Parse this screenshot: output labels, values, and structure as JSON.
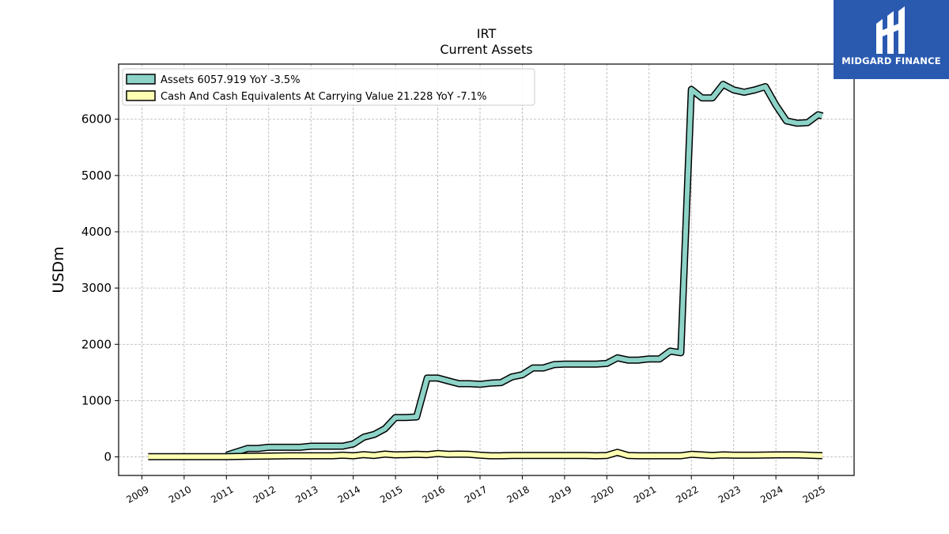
{
  "brand": {
    "name": "MIDGARD FINANCE",
    "color": "#2a5ab0"
  },
  "chart_data": {
    "type": "line",
    "title": "IRT",
    "subtitle": "Current  Assets",
    "ylabel": "USDm",
    "xlabel": "",
    "ylim": [
      -330,
      6980
    ],
    "xlim": [
      2008.45,
      2025.85
    ],
    "yticks": [
      0,
      1000,
      2000,
      3000,
      4000,
      5000,
      6000
    ],
    "xticks": [
      "2009",
      "2010",
      "2011",
      "2012",
      "2013",
      "2014",
      "2015",
      "2016",
      "2017",
      "2018",
      "2019",
      "2020",
      "2021",
      "2022",
      "2023",
      "2024",
      "2025"
    ],
    "grid": true,
    "legend_position": "top-left",
    "series": [
      {
        "name": "Assets",
        "legend_label": "Assets  6057.919 YoY -3.5%",
        "color": "#8dd3c7",
        "x": [
          2011.0,
          2011.5,
          2011.75,
          2012.0,
          2012.5,
          2012.75,
          2013.0,
          2013.5,
          2013.75,
          2014.0,
          2014.25,
          2014.5,
          2014.75,
          2015.0,
          2015.25,
          2015.5,
          2015.75,
          2016.0,
          2016.25,
          2016.5,
          2016.75,
          2017.0,
          2017.25,
          2017.5,
          2017.75,
          2018.0,
          2018.25,
          2018.5,
          2018.75,
          2019.0,
          2019.25,
          2019.5,
          2019.75,
          2020.0,
          2020.25,
          2020.5,
          2020.75,
          2021.0,
          2021.25,
          2021.5,
          2021.75,
          2022.0,
          2022.25,
          2022.5,
          2022.75,
          2023.0,
          2023.25,
          2023.5,
          2023.75,
          2024.0,
          2024.25,
          2024.5,
          2024.75,
          2025.0,
          2025.1
        ],
        "values": [
          30,
          150,
          150,
          170,
          170,
          170,
          190,
          190,
          190,
          230,
          350,
          400,
          500,
          700,
          700,
          710,
          1400,
          1400,
          1350,
          1300,
          1300,
          1290,
          1310,
          1320,
          1420,
          1460,
          1580,
          1580,
          1640,
          1650,
          1650,
          1650,
          1650,
          1660,
          1760,
          1720,
          1720,
          1740,
          1740,
          1880,
          1850,
          6530,
          6380,
          6380,
          6620,
          6520,
          6480,
          6520,
          6580,
          6250,
          5970,
          5930,
          5940,
          6080,
          6058
        ]
      },
      {
        "name": "Cash And Cash Equivalents At Carrying Value",
        "legend_label": "Cash And Cash Equivalents At Carrying Value  21.228 YoY -7.1%",
        "color": "#ffffb3",
        "x": [
          2009.15,
          2009.5,
          2010.0,
          2010.5,
          2011.0,
          2011.5,
          2012.0,
          2012.5,
          2013.0,
          2013.5,
          2013.75,
          2014.0,
          2014.25,
          2014.5,
          2014.75,
          2015.0,
          2015.25,
          2015.5,
          2015.75,
          2016.0,
          2016.25,
          2016.5,
          2016.75,
          2017.0,
          2017.25,
          2017.5,
          2017.75,
          2018.0,
          2018.5,
          2019.0,
          2019.5,
          2019.75,
          2020.0,
          2020.25,
          2020.5,
          2020.75,
          2021.0,
          2021.5,
          2021.75,
          2022.0,
          2022.25,
          2022.5,
          2022.75,
          2023.0,
          2023.5,
          2024.0,
          2024.5,
          2024.75,
          2025.1
        ],
        "values": [
          5,
          5,
          5,
          5,
          5,
          10,
          15,
          20,
          20,
          20,
          30,
          20,
          40,
          25,
          50,
          35,
          40,
          45,
          40,
          60,
          45,
          50,
          45,
          30,
          20,
          20,
          25,
          25,
          25,
          25,
          25,
          20,
          25,
          80,
          25,
          20,
          20,
          20,
          20,
          45,
          35,
          25,
          35,
          30,
          30,
          35,
          35,
          30,
          21
        ]
      }
    ]
  }
}
